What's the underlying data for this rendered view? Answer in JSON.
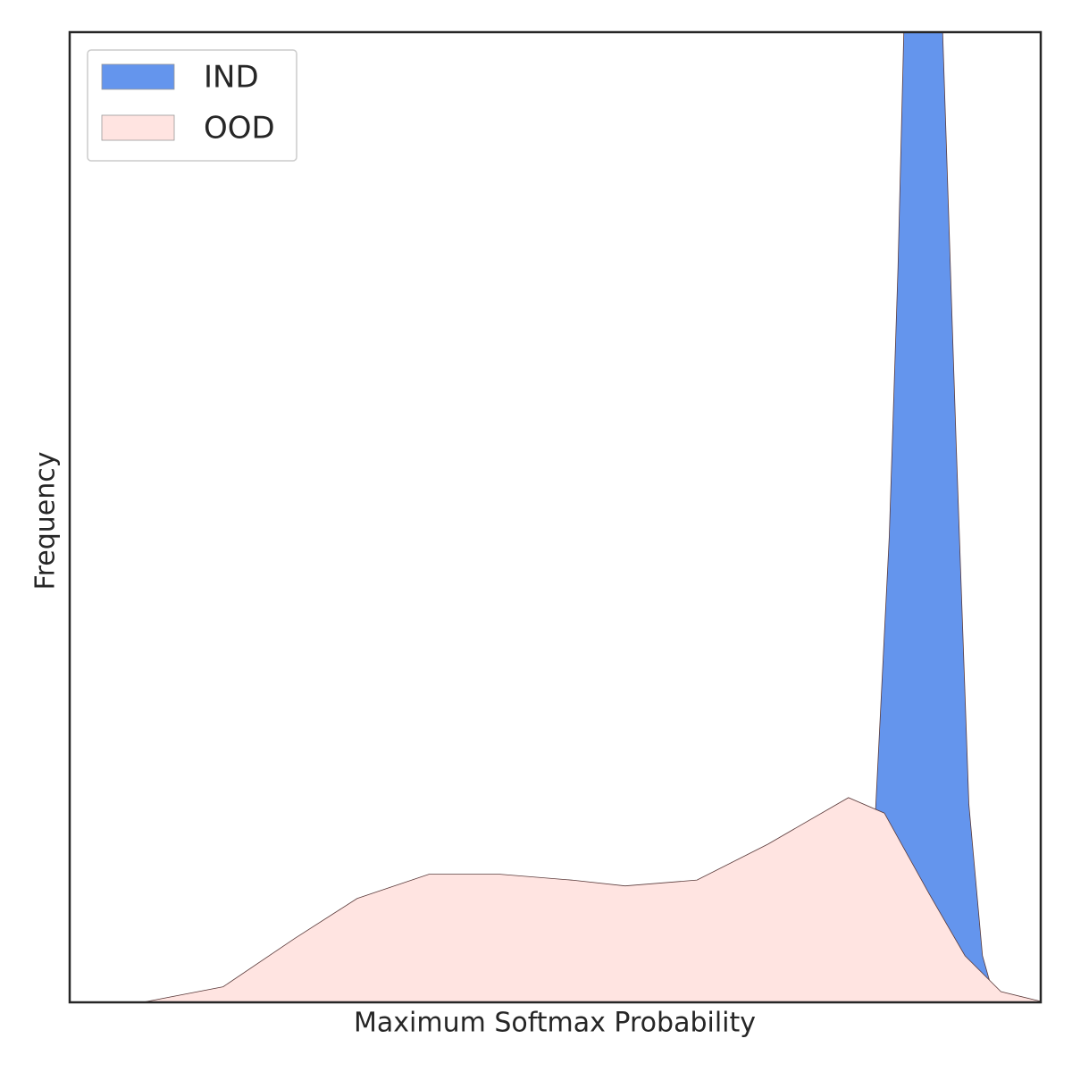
{
  "chart_data": {
    "type": "area",
    "xlabel": "Maximum Softmax Probability",
    "ylabel": "Frequency",
    "xlim": [
      0,
      1
    ],
    "ylim": [
      0,
      1
    ],
    "legend": "upper left",
    "series": [
      {
        "name": "IND",
        "color": "#6495ed",
        "x": [
          0,
          0.8,
          0.83,
          0.844,
          0.853,
          0.859,
          0.88,
          0.899,
          0.913,
          0.926,
          0.94,
          0.949,
          0.968,
          1
        ],
        "values": [
          0,
          0,
          0.2,
          0.48,
          0.757,
          1.0,
          1.2,
          1.0,
          0.573,
          0.204,
          0.048,
          0.016,
          0,
          0
        ]
      },
      {
        "name": "OOD",
        "color": "#ffe4e1",
        "x": [
          0,
          0.075,
          0.158,
          0.232,
          0.296,
          0.37,
          0.443,
          0.517,
          0.572,
          0.646,
          0.719,
          0.802,
          0.839,
          0.885,
          0.922,
          0.959,
          1
        ],
        "values": [
          0,
          0,
          0.016,
          0.066,
          0.107,
          0.132,
          0.132,
          0.126,
          0.12,
          0.126,
          0.163,
          0.211,
          0.195,
          0.112,
          0.048,
          0.011,
          0.001
        ]
      }
    ]
  }
}
